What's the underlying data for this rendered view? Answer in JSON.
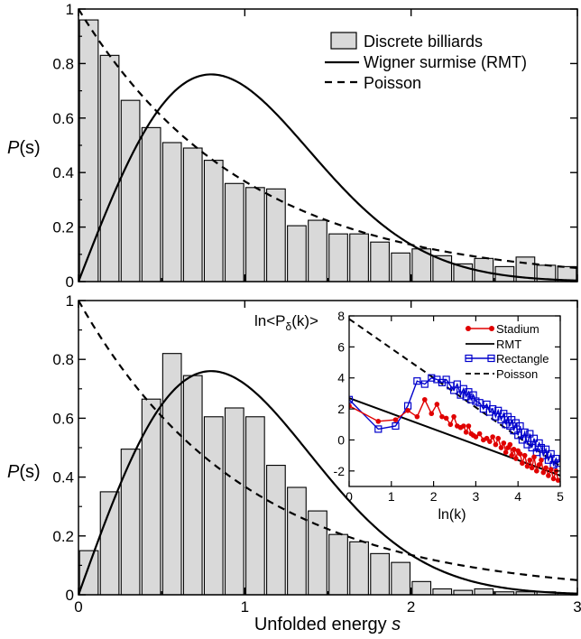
{
  "chart_data": [
    {
      "type": "bar",
      "panel": "top",
      "ylabel_main": "P",
      "ylabel_arg": "(s)",
      "xlim": [
        0,
        3
      ],
      "ylim": [
        0,
        1
      ],
      "x_ticks": [
        0,
        1,
        2,
        3
      ],
      "y_ticks": [
        0,
        0.2,
        0.4,
        0.6,
        0.8,
        1
      ],
      "y_tick_labels": [
        "0",
        "0.2",
        "0.4",
        "0.6",
        "0.8",
        "1"
      ],
      "bin_width": 0.125,
      "bins": [
        {
          "x0": 0.0,
          "value": 0.96
        },
        {
          "x0": 0.125,
          "value": 0.83
        },
        {
          "x0": 0.25,
          "value": 0.665
        },
        {
          "x0": 0.375,
          "value": 0.565
        },
        {
          "x0": 0.5,
          "value": 0.51
        },
        {
          "x0": 0.625,
          "value": 0.49
        },
        {
          "x0": 0.75,
          "value": 0.445
        },
        {
          "x0": 0.875,
          "value": 0.36
        },
        {
          "x0": 1.0,
          "value": 0.345
        },
        {
          "x0": 1.125,
          "value": 0.34
        },
        {
          "x0": 1.25,
          "value": 0.205
        },
        {
          "x0": 1.375,
          "value": 0.225
        },
        {
          "x0": 1.5,
          "value": 0.175
        },
        {
          "x0": 1.625,
          "value": 0.175
        },
        {
          "x0": 1.75,
          "value": 0.145
        },
        {
          "x0": 1.875,
          "value": 0.105
        },
        {
          "x0": 2.0,
          "value": 0.12
        },
        {
          "x0": 2.125,
          "value": 0.095
        },
        {
          "x0": 2.25,
          "value": 0.065
        },
        {
          "x0": 2.375,
          "value": 0.085
        },
        {
          "x0": 2.5,
          "value": 0.055
        },
        {
          "x0": 2.625,
          "value": 0.09
        },
        {
          "x0": 2.75,
          "value": 0.06
        },
        {
          "x0": 2.875,
          "value": 0.055
        }
      ],
      "legend": {
        "placement": "top-right",
        "items": [
          "Discrete billiards",
          "Wigner surmise (RMT)",
          "Poisson"
        ]
      },
      "series": [
        {
          "name": "Discrete billiards",
          "kind": "histogram",
          "color": "#d9d9d9"
        },
        {
          "name": "Wigner surmise (RMT)",
          "kind": "curve",
          "formula": "(pi/2)*s*exp(-pi*s^2/4)",
          "style": "solid",
          "color": "#000000"
        },
        {
          "name": "Poisson",
          "kind": "curve",
          "formula": "exp(-s)",
          "style": "dashed",
          "color": "#000000"
        }
      ]
    },
    {
      "type": "bar",
      "panel": "bottom",
      "ylabel_main": "P",
      "ylabel_arg": "(s)",
      "xlabel_main": "Unfolded energy ",
      "xlabel_var": "s",
      "xlim": [
        0,
        3
      ],
      "ylim": [
        0,
        1
      ],
      "x_ticks": [
        0,
        1,
        2,
        3
      ],
      "x_tick_labels": [
        "0",
        "1",
        "2",
        "3"
      ],
      "y_ticks": [
        0,
        0.2,
        0.4,
        0.6,
        0.8,
        1
      ],
      "y_tick_labels": [
        "0",
        "0.2",
        "0.4",
        "0.6",
        "0.8",
        "1"
      ],
      "bin_width": 0.125,
      "bins": [
        {
          "x0": 0.0,
          "value": 0.15
        },
        {
          "x0": 0.125,
          "value": 0.35
        },
        {
          "x0": 0.25,
          "value": 0.495
        },
        {
          "x0": 0.375,
          "value": 0.665
        },
        {
          "x0": 0.5,
          "value": 0.82
        },
        {
          "x0": 0.625,
          "value": 0.745
        },
        {
          "x0": 0.75,
          "value": 0.605
        },
        {
          "x0": 0.875,
          "value": 0.635
        },
        {
          "x0": 1.0,
          "value": 0.605
        },
        {
          "x0": 1.125,
          "value": 0.44
        },
        {
          "x0": 1.25,
          "value": 0.365
        },
        {
          "x0": 1.375,
          "value": 0.285
        },
        {
          "x0": 1.5,
          "value": 0.205
        },
        {
          "x0": 1.625,
          "value": 0.18
        },
        {
          "x0": 1.75,
          "value": 0.14
        },
        {
          "x0": 1.875,
          "value": 0.11
        },
        {
          "x0": 2.0,
          "value": 0.045
        },
        {
          "x0": 2.125,
          "value": 0.02
        },
        {
          "x0": 2.25,
          "value": 0.015
        },
        {
          "x0": 2.375,
          "value": 0.02
        },
        {
          "x0": 2.5,
          "value": 0.01
        },
        {
          "x0": 2.625,
          "value": 0.01
        },
        {
          "x0": 2.75,
          "value": 0.01
        },
        {
          "x0": 2.875,
          "value": 0.005
        }
      ],
      "series": [
        {
          "name": "Discrete billiards",
          "kind": "histogram",
          "color": "#d9d9d9"
        },
        {
          "name": "Wigner surmise (RMT)",
          "kind": "curve",
          "formula": "(pi/2)*s*exp(-pi*s^2/4)",
          "style": "solid",
          "color": "#000000"
        },
        {
          "name": "Poisson",
          "kind": "curve",
          "formula": "exp(-s)",
          "style": "dashed",
          "color": "#000000"
        }
      ]
    },
    {
      "type": "line",
      "panel": "inset",
      "ylabel_main": "ln<P",
      "ylabel_sub": "δ",
      "ylabel_tail": "(k)>",
      "xlabel": "ln(k)",
      "xlim": [
        0,
        5
      ],
      "ylim": [
        -3,
        8
      ],
      "x_ticks": [
        0,
        1,
        2,
        3,
        4,
        5
      ],
      "y_ticks": [
        -2,
        0,
        2,
        4,
        6,
        8
      ],
      "legend": {
        "placement": "top-right",
        "items": [
          "Stadium",
          "RMT",
          "Rectangle",
          "Poisson"
        ]
      },
      "series": [
        {
          "name": "Stadium",
          "color": "#e00000",
          "marker": "filled-circle",
          "x": [
            0,
            0.69,
            1.1,
            1.39,
            1.61,
            1.79,
            1.95,
            2.08,
            2.2,
            2.3,
            2.4,
            2.48,
            2.56,
            2.64,
            2.71,
            2.77,
            2.83,
            2.89,
            2.94,
            3.0,
            3.09,
            3.18,
            3.26,
            3.33,
            3.4,
            3.47,
            3.53,
            3.6,
            3.66,
            3.71,
            3.76,
            3.81,
            3.85,
            3.9,
            3.95,
            4.0,
            4.05,
            4.1,
            4.16,
            4.22,
            4.28,
            4.33,
            4.38,
            4.44,
            4.5,
            4.55,
            4.6,
            4.66,
            4.72,
            4.78,
            4.84,
            4.9,
            4.95
          ],
          "y": [
            2.2,
            1.2,
            1.3,
            1.9,
            1.5,
            2.6,
            1.7,
            2.3,
            1.5,
            1.4,
            1.0,
            1.5,
            0.9,
            0.8,
            0.9,
            0.5,
            0.9,
            0.4,
            0.3,
            0.2,
            0.4,
            0.0,
            0.1,
            -0.1,
            0.2,
            -0.3,
            0.1,
            -0.5,
            -0.2,
            -0.8,
            -0.5,
            -0.3,
            -1.0,
            -0.6,
            -1.2,
            -0.7,
            -0.9,
            -1.5,
            -1.0,
            -1.7,
            -1.3,
            -1.8,
            -1.1,
            -2.0,
            -1.6,
            -1.3,
            -2.1,
            -1.8,
            -2.3,
            -1.9,
            -2.5,
            -2.0,
            -2.6
          ]
        },
        {
          "name": "RMT",
          "color": "#000000",
          "style": "solid",
          "x": [
            0,
            5
          ],
          "y": [
            2.7,
            -2.3
          ]
        },
        {
          "name": "Rectangle",
          "color": "#0000cc",
          "marker": "open-square",
          "x": [
            0,
            0.69,
            1.1,
            1.39,
            1.61,
            1.79,
            1.95,
            2.08,
            2.2,
            2.3,
            2.4,
            2.48,
            2.56,
            2.64,
            2.71,
            2.77,
            2.83,
            2.89,
            2.94,
            3.0,
            3.09,
            3.18,
            3.26,
            3.33,
            3.4,
            3.47,
            3.53,
            3.6,
            3.66,
            3.71,
            3.76,
            3.81,
            3.85,
            3.9,
            3.95,
            4.0,
            4.05,
            4.1,
            4.16,
            4.22,
            4.28,
            4.33,
            4.38,
            4.44,
            4.5,
            4.55,
            4.6,
            4.66,
            4.72,
            4.78,
            4.84,
            4.9,
            4.95
          ],
          "y": [
            2.6,
            0.7,
            0.9,
            2.2,
            3.8,
            3.6,
            4.0,
            3.9,
            3.7,
            3.9,
            3.5,
            3.2,
            3.6,
            2.9,
            3.3,
            2.8,
            3.1,
            2.6,
            2.9,
            2.5,
            2.4,
            2.0,
            2.3,
            1.8,
            2.0,
            1.5,
            1.9,
            1.3,
            1.7,
            1.0,
            1.5,
            0.9,
            1.3,
            0.6,
            1.1,
            0.3,
            0.9,
            0.0,
            0.5,
            -0.3,
            0.4,
            -0.5,
            0.1,
            -0.8,
            -0.2,
            -0.5,
            -1.0,
            -0.6,
            -1.3,
            -0.9,
            -1.6,
            -1.2,
            -1.5
          ]
        },
        {
          "name": "Poisson",
          "color": "#000000",
          "style": "dashed",
          "x": [
            0,
            5
          ],
          "y": [
            7.8,
            -1.7
          ]
        }
      ]
    }
  ]
}
